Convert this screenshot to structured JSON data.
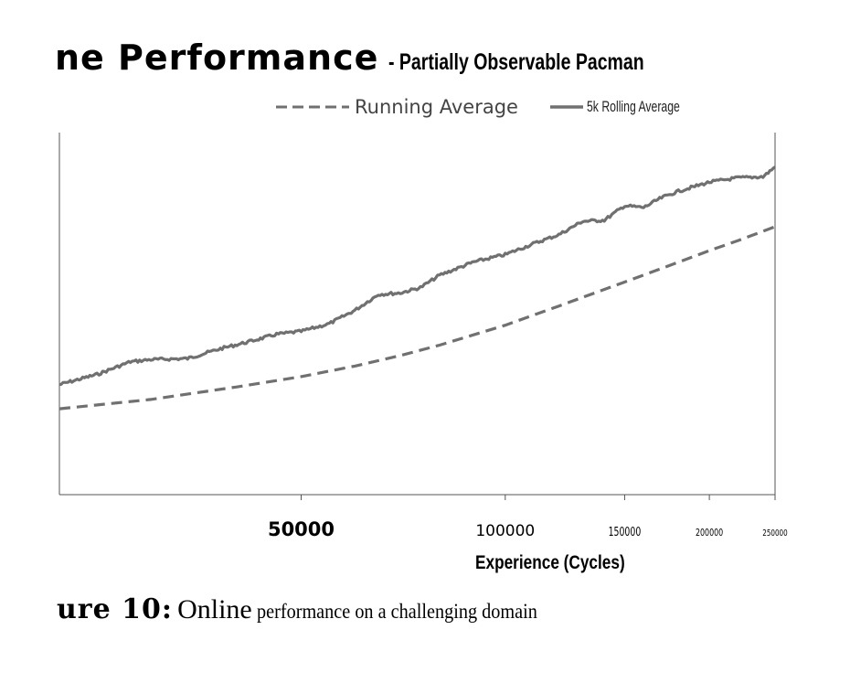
{
  "title": {
    "part1": "ne  Performance",
    "part2": "- Partially Observable Pacman"
  },
  "legend": {
    "running_average": "Running Average",
    "rolling_average": "5k Rolling Average"
  },
  "caption": {
    "part1": "ure  10:",
    "part2": "Online",
    "part3": "performance on a challenging domain"
  },
  "colors": {
    "series": "#707070",
    "axis": "#555555"
  },
  "chart_data": {
    "type": "line",
    "title": "ne  Performance - Partially Observable Pacman",
    "xlabel": "Experience (Cycles)",
    "ylabel": "",
    "x_scale": "log",
    "xlim": [
      22000,
      250000
    ],
    "x_ticks": [
      {
        "value": 50000,
        "label": "50000"
      },
      {
        "value": 100000,
        "label": "100000"
      },
      {
        "value": 150000,
        "label": "150000"
      },
      {
        "value": 200000,
        "label": "200000"
      },
      {
        "value": 250000,
        "label": "250000"
      }
    ],
    "ylim": [
      0,
      100
    ],
    "grid": false,
    "legend_position": "top",
    "series": [
      {
        "name": "Running Average",
        "style": "dashed",
        "x": [
          22000,
          30000,
          40000,
          50000,
          60000,
          70000,
          80000,
          100000,
          120000,
          150000,
          180000,
          200000,
          220000,
          250000
        ],
        "y": [
          23.7,
          26.3,
          29.7,
          32.6,
          35.5,
          38.4,
          41.3,
          46.8,
          52.1,
          58.7,
          64.2,
          67.4,
          70.1,
          74.0
        ]
      },
      {
        "name": "5k Rolling Average",
        "style": "solid",
        "x": [
          22000,
          25000,
          28000,
          30000,
          34000,
          38000,
          42000,
          46000,
          50000,
          55000,
          60000,
          65000,
          70000,
          75000,
          80000,
          90000,
          100000,
          110000,
          120000,
          130000,
          140000,
          150000,
          160000,
          170000,
          180000,
          200000,
          220000,
          240000,
          250000
        ],
        "y": [
          30.4,
          33.2,
          36.7,
          37.3,
          37.6,
          40.3,
          42.3,
          44.3,
          45.1,
          47.2,
          50.9,
          55.3,
          55.7,
          57.2,
          60.6,
          64.3,
          66.3,
          69.3,
          71.8,
          75.5,
          75.8,
          79.8,
          79.3,
          82.0,
          83.8,
          86.3,
          87.5,
          87.8,
          90.5
        ]
      }
    ]
  }
}
